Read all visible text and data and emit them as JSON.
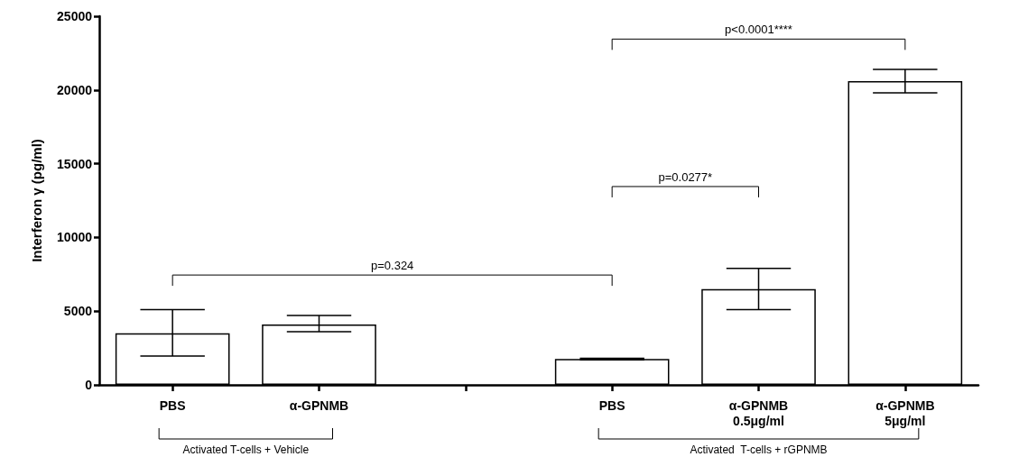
{
  "chart_data": {
    "type": "bar",
    "ylabel": "Interferon γ (pg/ml)",
    "categories": [
      "PBS",
      "α-GPNMB",
      null,
      "PBS",
      "α-GPNMB\n0.5μg/ml",
      "α-GPNMB\n5μg/ml"
    ],
    "values": [
      3500,
      4100,
      null,
      1750,
      6500,
      20600
    ],
    "errors": [
      [
        1950,
        5100
      ],
      [
        3600,
        4700
      ],
      null,
      [
        1700,
        1800
      ],
      [
        5100,
        7900
      ],
      [
        19800,
        21400
      ]
    ],
    "color": "#ffffff",
    "ylim": [
      0,
      25000
    ],
    "yticks": [
      0,
      5000,
      10000,
      15000,
      20000,
      25000
    ],
    "grid": false,
    "annotations": [
      "p=0.324",
      "p=0.0277*",
      "p<0.0001****",
      "Activated T-cells + Vehicle",
      "Activated  T-cells + rGPNMB"
    ]
  }
}
